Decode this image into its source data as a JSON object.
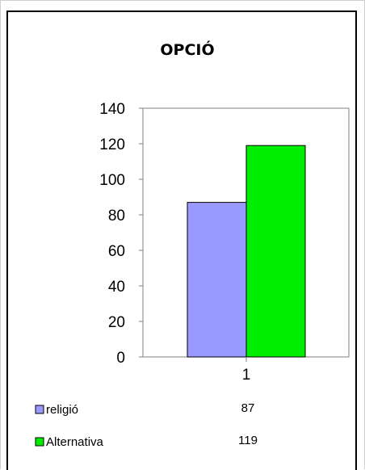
{
  "chart_data": {
    "type": "bar",
    "title": "OPCIÓ",
    "categories": [
      "1"
    ],
    "series": [
      {
        "name": "religió",
        "values": [
          87
        ],
        "color": "#9999ff"
      },
      {
        "name": "Alternativa",
        "values": [
          119
        ],
        "color": "#00ee00"
      }
    ],
    "ylim": [
      0,
      140
    ],
    "yticks": [
      "0",
      "20",
      "40",
      "60",
      "80",
      "100",
      "120",
      "140"
    ],
    "xlabel": "",
    "ylabel": "",
    "grid": false,
    "legend": "bottom data table",
    "table_values": [
      "87",
      "119"
    ]
  }
}
